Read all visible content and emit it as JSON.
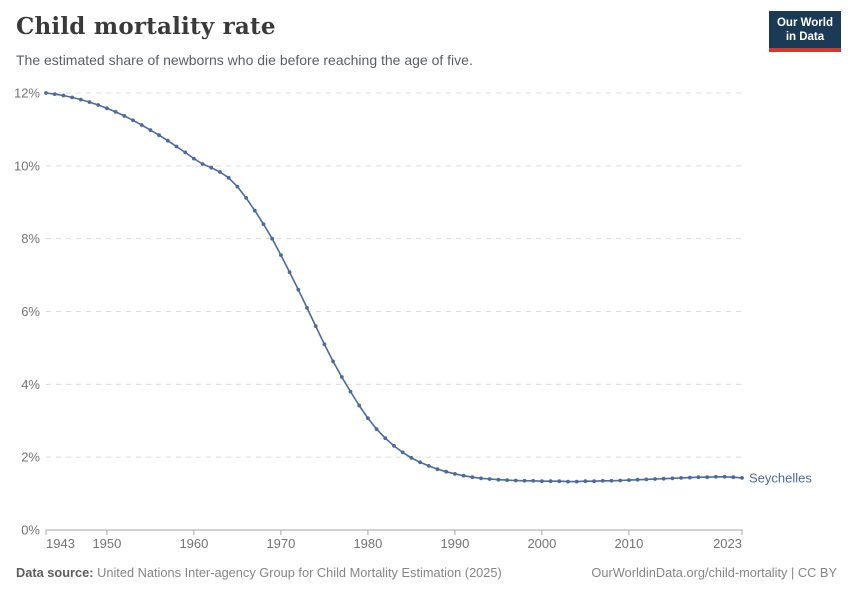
{
  "header": {
    "title": "Child mortality rate",
    "subtitle": "The estimated share of newborns who die before reaching the age of five.",
    "logo": {
      "line1": "Our World",
      "line2": "in Data"
    }
  },
  "footer": {
    "source_label": "Data source:",
    "source_text": "United Nations Inter-agency Group for Child Mortality Estimation (2025)",
    "link_text": "OurWorldinData.org/child-mortality | CC BY"
  },
  "colors": {
    "series_blue": "#4c6a9c",
    "logo_navy": "#1b3a55",
    "logo_red": "#dc352e",
    "grid_gray": "#dcdcdc",
    "axis_gray": "#a5a5a5",
    "tick_label_gray": "#737373",
    "title_gray": "#3a3a3a",
    "subtitle_gray": "#5b5e61"
  },
  "chart_data": {
    "type": "line",
    "title": "Child mortality rate",
    "subtitle": "The estimated share of newborns who die before reaching the age of five.",
    "unit": "%",
    "xlim": [
      1943,
      2023
    ],
    "ylim": [
      0,
      12
    ],
    "x_ticks": [
      1943,
      1950,
      1960,
      1970,
      1980,
      1990,
      2000,
      2010,
      2023
    ],
    "x_tick_labels": [
      "1943",
      "1950",
      "1960",
      "1970",
      "1980",
      "1990",
      "2000",
      "2010",
      "2023"
    ],
    "y_ticks": [
      0,
      2,
      4,
      6,
      8,
      10,
      12
    ],
    "y_tick_labels": [
      "0%",
      "2%",
      "4%",
      "6%",
      "8%",
      "10%",
      "12%"
    ],
    "grid": "horizontal-dashed",
    "legend": "end-of-line-label",
    "markers": true,
    "series": [
      {
        "name": "Seychelles",
        "color": "#4c6a9c",
        "x": [
          1943,
          1944,
          1945,
          1946,
          1947,
          1948,
          1949,
          1950,
          1951,
          1952,
          1953,
          1954,
          1955,
          1956,
          1957,
          1958,
          1959,
          1960,
          1961,
          1962,
          1963,
          1964,
          1965,
          1966,
          1967,
          1968,
          1969,
          1970,
          1971,
          1972,
          1973,
          1974,
          1975,
          1976,
          1977,
          1978,
          1979,
          1980,
          1981,
          1982,
          1983,
          1984,
          1985,
          1986,
          1987,
          1988,
          1989,
          1990,
          1991,
          1992,
          1993,
          1994,
          1995,
          1996,
          1997,
          1998,
          1999,
          2000,
          2001,
          2002,
          2003,
          2004,
          2005,
          2006,
          2007,
          2008,
          2009,
          2010,
          2011,
          2012,
          2013,
          2014,
          2015,
          2016,
          2017,
          2018,
          2019,
          2020,
          2021,
          2022,
          2023
        ],
        "values": [
          12.0,
          11.97,
          11.93,
          11.88,
          11.82,
          11.75,
          11.67,
          11.58,
          11.48,
          11.37,
          11.25,
          11.12,
          10.98,
          10.84,
          10.69,
          10.53,
          10.37,
          10.2,
          10.05,
          9.95,
          9.83,
          9.67,
          9.43,
          9.12,
          8.77,
          8.4,
          8.0,
          7.55,
          7.08,
          6.6,
          6.1,
          5.6,
          5.1,
          4.63,
          4.2,
          3.8,
          3.42,
          3.07,
          2.77,
          2.52,
          2.31,
          2.13,
          1.98,
          1.86,
          1.76,
          1.67,
          1.6,
          1.54,
          1.49,
          1.45,
          1.42,
          1.4,
          1.38,
          1.37,
          1.36,
          1.35,
          1.35,
          1.34,
          1.34,
          1.34,
          1.33,
          1.33,
          1.34,
          1.34,
          1.35,
          1.35,
          1.36,
          1.37,
          1.38,
          1.39,
          1.4,
          1.41,
          1.42,
          1.43,
          1.44,
          1.45,
          1.45,
          1.46,
          1.46,
          1.45,
          1.43
        ]
      }
    ]
  }
}
